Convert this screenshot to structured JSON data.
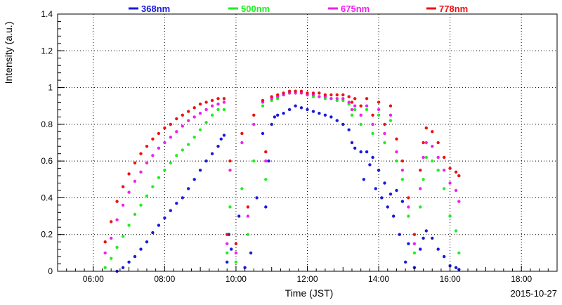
{
  "chart_data": {
    "type": "scatter",
    "title": "",
    "xlabel": "Time (JST)",
    "ylabel": "Intensity (a.u.)",
    "date_label": "2015-10-27",
    "xlim": [
      "05:00",
      "19:00"
    ],
    "ylim": [
      0,
      1.4
    ],
    "x_ticks": [
      "06:00",
      "08:00",
      "10:00",
      "12:00",
      "14:00",
      "16:00",
      "18:00"
    ],
    "y_ticks": [
      "0",
      "0.2",
      "0.4",
      "0.6",
      "0.8",
      "1",
      "1.2",
      "1.4"
    ],
    "grid": true,
    "legend_position": "top",
    "series": [
      {
        "name": "368nm",
        "color": "#1a1adc",
        "points": [
          [
            "06:40",
            0.0
          ],
          [
            "06:50",
            0.02
          ],
          [
            "07:00",
            0.05
          ],
          [
            "07:10",
            0.08
          ],
          [
            "07:20",
            0.12
          ],
          [
            "07:30",
            0.16
          ],
          [
            "07:40",
            0.21
          ],
          [
            "07:50",
            0.25
          ],
          [
            "08:00",
            0.29
          ],
          [
            "08:10",
            0.33
          ],
          [
            "08:20",
            0.37
          ],
          [
            "08:30",
            0.4
          ],
          [
            "08:40",
            0.45
          ],
          [
            "08:50",
            0.5
          ],
          [
            "09:00",
            0.55
          ],
          [
            "09:10",
            0.6
          ],
          [
            "09:20",
            0.64
          ],
          [
            "09:30",
            0.68
          ],
          [
            "09:35",
            0.72
          ],
          [
            "09:40",
            0.74
          ],
          [
            "09:45",
            0.05
          ],
          [
            "09:48",
            0.2
          ],
          [
            "09:52",
            0.12
          ],
          [
            "10:05",
            0.3
          ],
          [
            "10:15",
            0.02
          ],
          [
            "10:25",
            0.1
          ],
          [
            "10:35",
            0.4
          ],
          [
            "10:45",
            0.75
          ],
          [
            "10:50",
            0.35
          ],
          [
            "10:55",
            0.6
          ],
          [
            "11:00",
            0.8
          ],
          [
            "11:05",
            0.84
          ],
          [
            "11:10",
            0.85
          ],
          [
            "11:20",
            0.86
          ],
          [
            "11:30",
            0.88
          ],
          [
            "11:40",
            0.9
          ],
          [
            "11:50",
            0.89
          ],
          [
            "12:00",
            0.88
          ],
          [
            "12:10",
            0.87
          ],
          [
            "12:20",
            0.86
          ],
          [
            "12:30",
            0.85
          ],
          [
            "12:40",
            0.84
          ],
          [
            "12:50",
            0.82
          ],
          [
            "13:00",
            0.8
          ],
          [
            "13:10",
            0.77
          ],
          [
            "13:15",
            0.7
          ],
          [
            "13:20",
            0.67
          ],
          [
            "13:30",
            0.65
          ],
          [
            "13:35",
            0.5
          ],
          [
            "13:40",
            0.65
          ],
          [
            "13:45",
            0.58
          ],
          [
            "13:50",
            0.62
          ],
          [
            "13:55",
            0.45
          ],
          [
            "14:00",
            0.55
          ],
          [
            "14:05",
            0.4
          ],
          [
            "14:10",
            0.48
          ],
          [
            "14:15",
            0.35
          ],
          [
            "14:20",
            0.42
          ],
          [
            "14:25",
            0.3
          ],
          [
            "14:30",
            0.44
          ],
          [
            "14:35",
            0.2
          ],
          [
            "14:40",
            0.38
          ],
          [
            "14:45",
            0.05
          ],
          [
            "14:50",
            0.15
          ],
          [
            "15:00",
            0.02
          ],
          [
            "15:10",
            0.12
          ],
          [
            "15:15",
            0.18
          ],
          [
            "15:20",
            0.22
          ],
          [
            "15:30",
            0.18
          ],
          [
            "15:40",
            0.12
          ],
          [
            "15:50",
            0.08
          ],
          [
            "16:00",
            0.03
          ],
          [
            "16:10",
            0.02
          ],
          [
            "16:15",
            0.01
          ]
        ]
      },
      {
        "name": "500nm",
        "color": "#22ee22",
        "points": [
          [
            "06:20",
            0.02
          ],
          [
            "06:30",
            0.07
          ],
          [
            "06:40",
            0.13
          ],
          [
            "06:50",
            0.19
          ],
          [
            "07:00",
            0.25
          ],
          [
            "07:10",
            0.31
          ],
          [
            "07:20",
            0.36
          ],
          [
            "07:30",
            0.41
          ],
          [
            "07:40",
            0.46
          ],
          [
            "07:50",
            0.51
          ],
          [
            "08:00",
            0.55
          ],
          [
            "08:10",
            0.59
          ],
          [
            "08:20",
            0.63
          ],
          [
            "08:30",
            0.66
          ],
          [
            "08:40",
            0.69
          ],
          [
            "08:50",
            0.73
          ],
          [
            "09:00",
            0.77
          ],
          [
            "09:10",
            0.81
          ],
          [
            "09:20",
            0.85
          ],
          [
            "09:30",
            0.88
          ],
          [
            "09:40",
            0.88
          ],
          [
            "09:45",
            0.1
          ],
          [
            "09:50",
            0.35
          ],
          [
            "10:00",
            0.05
          ],
          [
            "10:10",
            0.45
          ],
          [
            "10:20",
            0.2
          ],
          [
            "10:30",
            0.6
          ],
          [
            "10:45",
            0.9
          ],
          [
            "10:50",
            0.5
          ],
          [
            "11:00",
            0.93
          ],
          [
            "11:10",
            0.94
          ],
          [
            "11:20",
            0.96
          ],
          [
            "11:30",
            0.97
          ],
          [
            "11:40",
            0.98
          ],
          [
            "11:50",
            0.97
          ],
          [
            "12:00",
            0.96
          ],
          [
            "12:10",
            0.95
          ],
          [
            "12:20",
            0.95
          ],
          [
            "12:30",
            0.94
          ],
          [
            "12:40",
            0.94
          ],
          [
            "12:50",
            0.93
          ],
          [
            "13:00",
            0.93
          ],
          [
            "13:10",
            0.91
          ],
          [
            "13:15",
            0.85
          ],
          [
            "13:20",
            0.88
          ],
          [
            "13:30",
            0.8
          ],
          [
            "13:40",
            0.88
          ],
          [
            "13:50",
            0.75
          ],
          [
            "14:00",
            0.85
          ],
          [
            "14:10",
            0.7
          ],
          [
            "14:20",
            0.82
          ],
          [
            "14:30",
            0.6
          ],
          [
            "14:40",
            0.5
          ],
          [
            "14:50",
            0.3
          ],
          [
            "15:00",
            0.1
          ],
          [
            "15:10",
            0.35
          ],
          [
            "15:15",
            0.5
          ],
          [
            "15:20",
            0.62
          ],
          [
            "15:30",
            0.6
          ],
          [
            "15:40",
            0.55
          ],
          [
            "15:50",
            0.45
          ],
          [
            "16:00",
            0.3
          ],
          [
            "16:10",
            0.22
          ],
          [
            "16:15",
            0.1
          ]
        ]
      },
      {
        "name": "675nm",
        "color": "#ee22ee",
        "points": [
          [
            "06:20",
            0.1
          ],
          [
            "06:30",
            0.18
          ],
          [
            "06:40",
            0.28
          ],
          [
            "06:50",
            0.36
          ],
          [
            "07:00",
            0.43
          ],
          [
            "07:10",
            0.49
          ],
          [
            "07:20",
            0.54
          ],
          [
            "07:30",
            0.59
          ],
          [
            "07:40",
            0.63
          ],
          [
            "07:50",
            0.67
          ],
          [
            "08:00",
            0.7
          ],
          [
            "08:10",
            0.73
          ],
          [
            "08:20",
            0.76
          ],
          [
            "08:30",
            0.79
          ],
          [
            "08:40",
            0.82
          ],
          [
            "08:50",
            0.84
          ],
          [
            "09:00",
            0.86
          ],
          [
            "09:10",
            0.88
          ],
          [
            "09:20",
            0.9
          ],
          [
            "09:30",
            0.91
          ],
          [
            "09:40",
            0.92
          ],
          [
            "09:45",
            0.15
          ],
          [
            "09:50",
            0.55
          ],
          [
            "10:00",
            0.1
          ],
          [
            "10:10",
            0.7
          ],
          [
            "10:20",
            0.3
          ],
          [
            "10:30",
            0.8
          ],
          [
            "10:45",
            0.92
          ],
          [
            "10:50",
            0.6
          ],
          [
            "11:00",
            0.94
          ],
          [
            "11:10",
            0.95
          ],
          [
            "11:20",
            0.96
          ],
          [
            "11:30",
            0.97
          ],
          [
            "11:40",
            0.97
          ],
          [
            "11:50",
            0.97
          ],
          [
            "12:00",
            0.96
          ],
          [
            "12:10",
            0.96
          ],
          [
            "12:20",
            0.95
          ],
          [
            "12:30",
            0.95
          ],
          [
            "12:40",
            0.94
          ],
          [
            "12:50",
            0.94
          ],
          [
            "13:00",
            0.94
          ],
          [
            "13:10",
            0.92
          ],
          [
            "13:15",
            0.88
          ],
          [
            "13:20",
            0.9
          ],
          [
            "13:30",
            0.85
          ],
          [
            "13:40",
            0.9
          ],
          [
            "13:50",
            0.8
          ],
          [
            "14:00",
            0.88
          ],
          [
            "14:10",
            0.75
          ],
          [
            "14:20",
            0.85
          ],
          [
            "14:30",
            0.65
          ],
          [
            "14:40",
            0.55
          ],
          [
            "14:50",
            0.35
          ],
          [
            "15:00",
            0.15
          ],
          [
            "15:10",
            0.45
          ],
          [
            "15:15",
            0.62
          ],
          [
            "15:20",
            0.7
          ],
          [
            "15:30",
            0.68
          ],
          [
            "15:40",
            0.62
          ],
          [
            "15:50",
            0.55
          ],
          [
            "16:00",
            0.48
          ],
          [
            "16:10",
            0.44
          ],
          [
            "16:15",
            0.38
          ]
        ]
      },
      {
        "name": "778nm",
        "color": "#ee1111",
        "points": [
          [
            "06:20",
            0.16
          ],
          [
            "06:30",
            0.27
          ],
          [
            "06:40",
            0.38
          ],
          [
            "06:50",
            0.46
          ],
          [
            "07:00",
            0.53
          ],
          [
            "07:10",
            0.59
          ],
          [
            "07:20",
            0.64
          ],
          [
            "07:30",
            0.68
          ],
          [
            "07:40",
            0.72
          ],
          [
            "07:50",
            0.75
          ],
          [
            "08:00",
            0.78
          ],
          [
            "08:10",
            0.8
          ],
          [
            "08:20",
            0.83
          ],
          [
            "08:30",
            0.85
          ],
          [
            "08:40",
            0.87
          ],
          [
            "08:50",
            0.89
          ],
          [
            "09:00",
            0.91
          ],
          [
            "09:10",
            0.92
          ],
          [
            "09:20",
            0.93
          ],
          [
            "09:30",
            0.94
          ],
          [
            "09:40",
            0.94
          ],
          [
            "09:45",
            0.2
          ],
          [
            "09:50",
            0.6
          ],
          [
            "10:00",
            0.15
          ],
          [
            "10:10",
            0.75
          ],
          [
            "10:20",
            0.35
          ],
          [
            "10:30",
            0.85
          ],
          [
            "10:45",
            0.93
          ],
          [
            "10:50",
            0.65
          ],
          [
            "11:00",
            0.95
          ],
          [
            "11:10",
            0.96
          ],
          [
            "11:20",
            0.97
          ],
          [
            "11:30",
            0.98
          ],
          [
            "11:40",
            0.98
          ],
          [
            "11:50",
            0.98
          ],
          [
            "12:00",
            0.97
          ],
          [
            "12:10",
            0.97
          ],
          [
            "12:20",
            0.97
          ],
          [
            "12:30",
            0.96
          ],
          [
            "12:40",
            0.96
          ],
          [
            "12:50",
            0.96
          ],
          [
            "13:00",
            0.96
          ],
          [
            "13:10",
            0.95
          ],
          [
            "13:15",
            0.92
          ],
          [
            "13:20",
            0.94
          ],
          [
            "13:30",
            0.9
          ],
          [
            "13:40",
            0.94
          ],
          [
            "13:50",
            0.85
          ],
          [
            "14:00",
            0.92
          ],
          [
            "14:10",
            0.8
          ],
          [
            "14:20",
            0.9
          ],
          [
            "14:30",
            0.72
          ],
          [
            "14:40",
            0.6
          ],
          [
            "14:50",
            0.4
          ],
          [
            "15:00",
            0.2
          ],
          [
            "15:10",
            0.55
          ],
          [
            "15:15",
            0.7
          ],
          [
            "15:20",
            0.78
          ],
          [
            "15:30",
            0.76
          ],
          [
            "15:40",
            0.7
          ],
          [
            "15:50",
            0.62
          ],
          [
            "16:00",
            0.56
          ],
          [
            "16:10",
            0.54
          ],
          [
            "16:15",
            0.52
          ]
        ]
      }
    ]
  }
}
